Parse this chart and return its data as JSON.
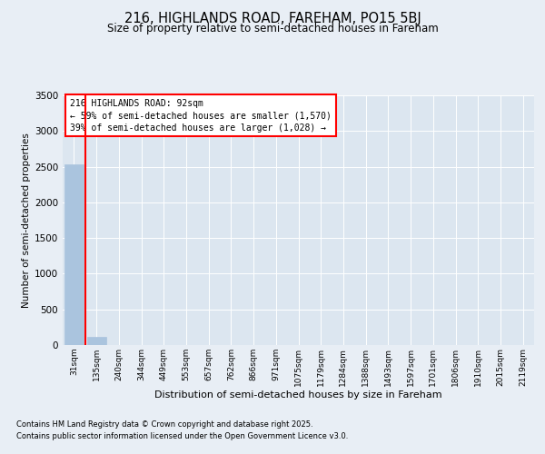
{
  "title_line1": "216, HIGHLANDS ROAD, FAREHAM, PO15 5BJ",
  "title_line2": "Size of property relative to semi-detached houses in Fareham",
  "xlabel": "Distribution of semi-detached houses by size in Fareham",
  "ylabel": "Number of semi-detached properties",
  "categories": [
    "31sqm",
    "135sqm",
    "240sqm",
    "344sqm",
    "449sqm",
    "553sqm",
    "657sqm",
    "762sqm",
    "866sqm",
    "971sqm",
    "1075sqm",
    "1179sqm",
    "1284sqm",
    "1388sqm",
    "1493sqm",
    "1597sqm",
    "1701sqm",
    "1806sqm",
    "1910sqm",
    "2015sqm",
    "2119sqm"
  ],
  "values": [
    2530,
    120,
    0,
    0,
    0,
    0,
    0,
    0,
    0,
    0,
    0,
    0,
    0,
    0,
    0,
    0,
    0,
    0,
    0,
    0,
    0
  ],
  "bar_color": "#aac4de",
  "bar_edge_color": "#aac4de",
  "red_line_x": 0.5,
  "annotation_title": "216 HIGHLANDS ROAD: 92sqm",
  "annotation_line2": "← 59% of semi-detached houses are smaller (1,570)",
  "annotation_line3": "39% of semi-detached houses are larger (1,028) →",
  "ylim": [
    0,
    3500
  ],
  "yticks": [
    0,
    500,
    1000,
    1500,
    2000,
    2500,
    3000,
    3500
  ],
  "bg_color": "#e8eef5",
  "plot_bg_color": "#dce6f0",
  "grid_color": "#ffffff",
  "footnote_line1": "Contains HM Land Registry data © Crown copyright and database right 2025.",
  "footnote_line2": "Contains public sector information licensed under the Open Government Licence v3.0."
}
